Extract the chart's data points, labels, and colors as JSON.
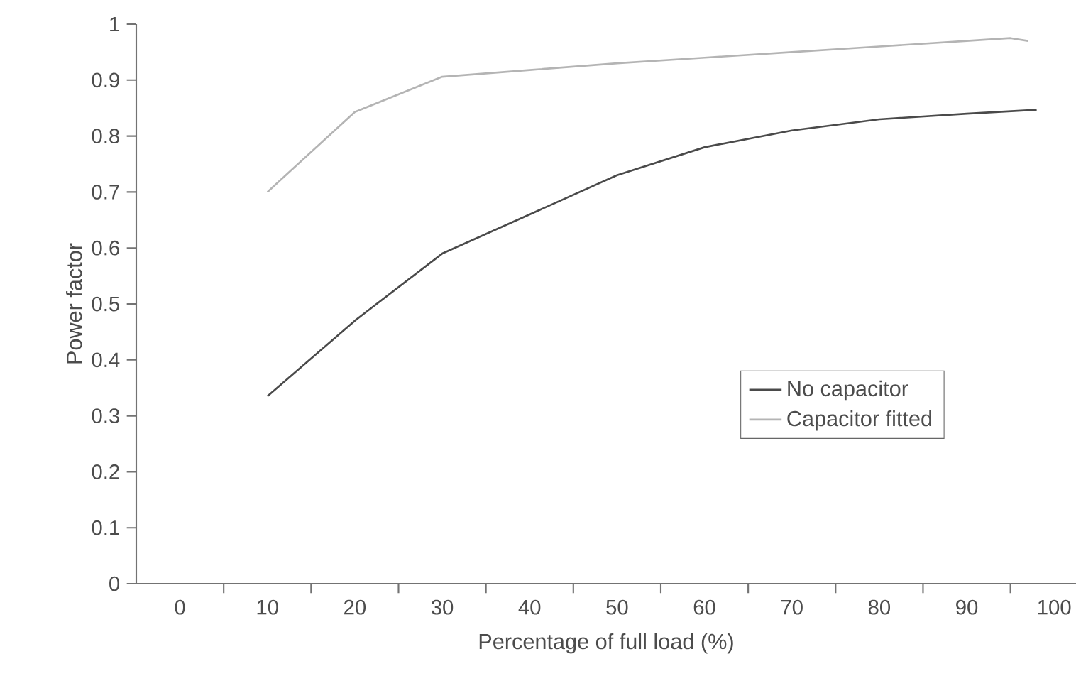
{
  "chart_data": {
    "type": "line",
    "xlabel": "Percentage of full load (%)",
    "ylabel": "Power factor",
    "xlim": [
      -5,
      102.5
    ],
    "ylim": [
      0,
      1
    ],
    "xticks": [
      0,
      10,
      20,
      30,
      40,
      50,
      60,
      70,
      80,
      90,
      100,
      {
        "value": 5,
        "label": null
      },
      {
        "value": 15,
        "label": null
      },
      {
        "value": 25,
        "label": null
      },
      {
        "value": 35,
        "label": null
      },
      {
        "value": 45,
        "label": null
      },
      {
        "value": 55,
        "label": null
      },
      {
        "value": 65,
        "label": null
      },
      {
        "value": 75,
        "label": null
      },
      {
        "value": 85,
        "label": null
      },
      {
        "value": 95,
        "label": null
      }
    ],
    "yticks": [
      0,
      0.1,
      0.2,
      0.3,
      0.4,
      0.5,
      0.6,
      0.7,
      0.8,
      0.9,
      1
    ],
    "grid": false,
    "legend": "right",
    "marker": "none",
    "line_style": "solid",
    "series": [
      {
        "name": "No capacitor",
        "color": "#4a4a4a",
        "x": [
          10,
          20,
          30,
          40,
          50,
          60,
          70,
          80,
          90,
          98
        ],
        "values": [
          0.335,
          0.47,
          0.59,
          0.66,
          0.73,
          0.78,
          0.81,
          0.83,
          0.84,
          0.847
        ]
      },
      {
        "name": "Capacitor fitted",
        "color": "#b4b4b4",
        "x": [
          10,
          20,
          30,
          40,
          50,
          60,
          70,
          80,
          90,
          95,
          97
        ],
        "values": [
          0.7,
          0.843,
          0.906,
          0.918,
          0.93,
          0.94,
          0.95,
          0.96,
          0.97,
          0.975,
          0.97
        ]
      }
    ]
  }
}
